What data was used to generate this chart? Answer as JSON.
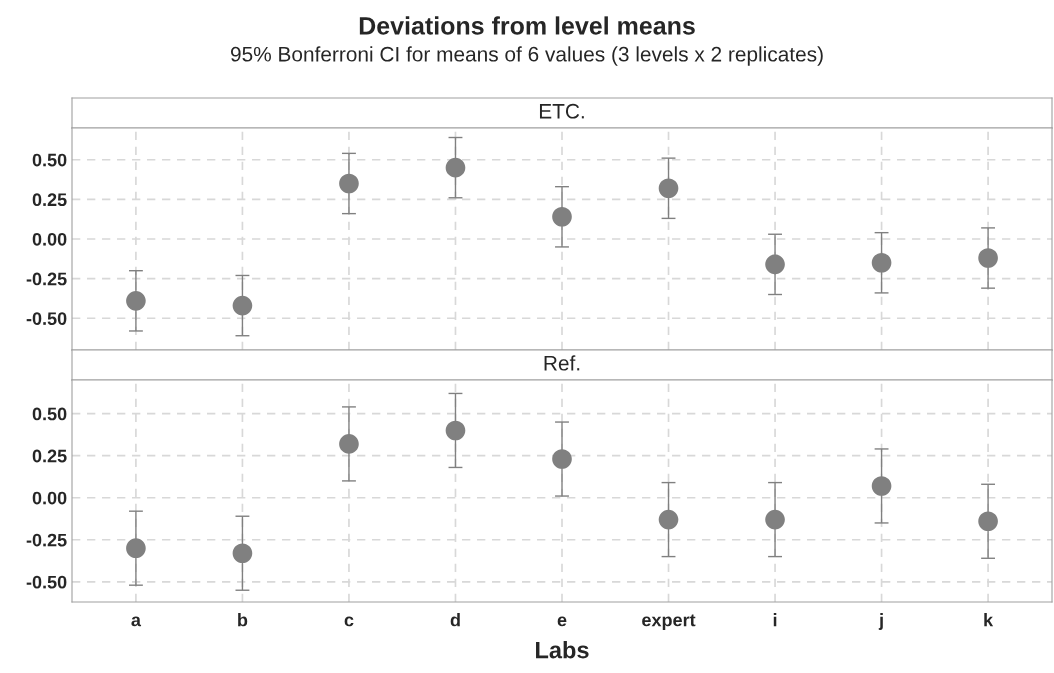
{
  "chart_data": [
    {
      "type": "scatter",
      "title": "ETC.",
      "annotations": [
        "Deviations from level means",
        "95% Bonferroni CI for means of 6 values (3 levels x 2 replicates)"
      ],
      "categories": [
        null,
        null,
        null,
        null,
        null,
        null,
        null,
        null,
        null
      ],
      "series": [
        {
          "color": "#808080",
          "values": [
            -0.39,
            -0.42,
            0.35,
            0.45,
            0.14,
            0.32,
            -0.16,
            -0.15,
            -0.12
          ],
          "errors": [
            0.19,
            0.19,
            0.19,
            0.19,
            0.19,
            0.19,
            0.19,
            0.19,
            0.19
          ]
        }
      ],
      "ylim": [
        -0.7,
        0.7
      ],
      "yticks": [
        {
          "value": -0.5,
          "label": "-0.50"
        },
        {
          "value": -0.25,
          "label": "-0.25"
        },
        {
          "value": 0,
          "label": "0.00"
        },
        {
          "value": 0.25,
          "label": "0.25"
        },
        {
          "value": 0.5,
          "label": "0.50"
        }
      ],
      "grid": true,
      "marker": "circle",
      "tick_labels": "y"
    },
    {
      "type": "scatter",
      "title": "Ref.",
      "xlabel": "Labs",
      "categories": [
        "a",
        "b",
        "c",
        "d",
        "e",
        "expert",
        "i",
        "j",
        "k"
      ],
      "series": [
        {
          "color": "#808080",
          "values": [
            -0.3,
            -0.33,
            0.32,
            0.4,
            0.23,
            -0.13,
            -0.13,
            0.07,
            -0.14
          ],
          "errors": [
            0.22,
            0.22,
            0.22,
            0.22,
            0.22,
            0.22,
            0.22,
            0.22,
            0.22
          ]
        }
      ],
      "ylim": [
        -0.62,
        0.7
      ],
      "yticks": [
        {
          "value": -0.5,
          "label": "-0.50"
        },
        {
          "value": -0.25,
          "label": "-0.25"
        },
        {
          "value": 0,
          "label": "0.00"
        },
        {
          "value": 0.25,
          "label": "0.25"
        },
        {
          "value": 0.5,
          "label": "0.50"
        }
      ],
      "grid": true,
      "marker": "circle"
    }
  ]
}
